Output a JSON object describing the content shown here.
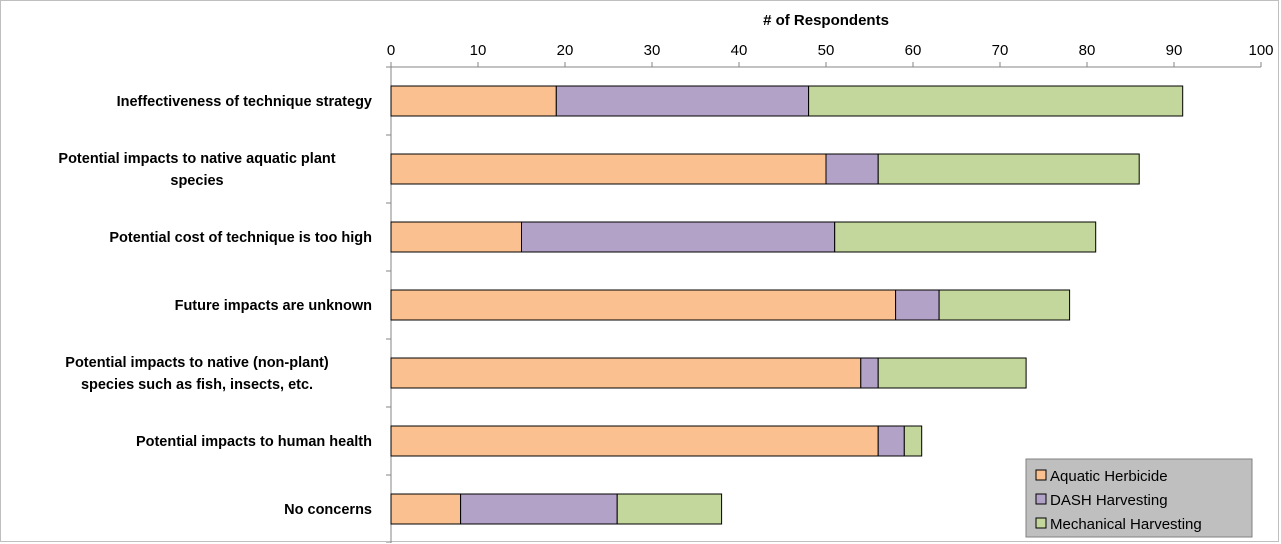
{
  "chart_data": {
    "type": "bar",
    "orientation": "horizontal",
    "stacked": true,
    "title": "",
    "xlabel": "# of Respondents",
    "ylabel": "",
    "xlim": [
      0,
      100
    ],
    "xticks": [
      0,
      10,
      20,
      30,
      40,
      50,
      60,
      70,
      80,
      90,
      100
    ],
    "x_axis_position": "top",
    "grid": false,
    "legend_position": "bottom-right",
    "categories": [
      [
        "Ineffectiveness of technique strategy"
      ],
      [
        "Potential impacts to native aquatic plant",
        "species"
      ],
      [
        "Potential cost of technique is too high"
      ],
      [
        "Future impacts are unknown"
      ],
      [
        "Potential impacts to native (non-plant)",
        "species such as fish, insects, etc."
      ],
      [
        "Potential impacts to human health"
      ],
      [
        "No concerns"
      ]
    ],
    "series": [
      {
        "name": "Aquatic Herbicide",
        "color": "#fac090",
        "values": [
          19,
          50,
          15,
          58,
          54,
          56,
          8
        ]
      },
      {
        "name": "DASH Harvesting",
        "color": "#b3a2c7",
        "values": [
          29,
          6,
          36,
          5,
          2,
          3,
          18
        ]
      },
      {
        "name": "Mechanical Harvesting",
        "color": "#c3d69b",
        "values": [
          43,
          30,
          30,
          15,
          17,
          2,
          12
        ]
      }
    ],
    "legend_bg": "#bfbfbf",
    "bar_border": "#000000"
  }
}
